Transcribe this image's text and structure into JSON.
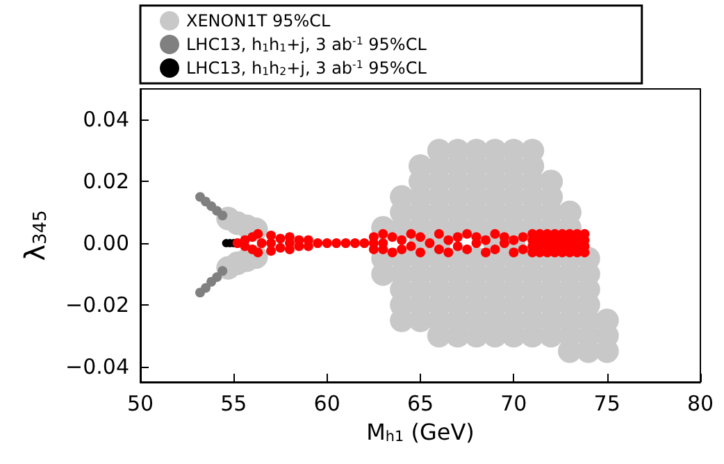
{
  "chart_data": {
    "type": "scatter",
    "xlabel": "M$_{h1}$ (GeV)",
    "ylabel": "λ$_{345}$",
    "xlim": [
      50,
      80
    ],
    "ylim": [
      -0.045,
      0.05
    ],
    "xticks": [
      50,
      55,
      60,
      65,
      70,
      75,
      80
    ],
    "yticks": [
      {
        "value": -0.04,
        "label": "−0.04"
      },
      {
        "value": -0.02,
        "label": "−0.02"
      },
      {
        "value": 0,
        "label": "0.00"
      },
      0.02,
      0.04
    ],
    "grid": false,
    "legend": "top",
    "marker": "circle",
    "series": [
      {
        "name": "XENON1T 95%CL",
        "color": "#c8c8c8",
        "x": [
          63,
          63,
          63,
          64,
          64,
          64,
          64,
          64,
          64,
          64,
          64,
          65,
          65,
          65,
          65,
          65,
          65,
          65,
          65,
          65,
          65,
          65,
          66,
          66,
          66,
          66,
          66,
          66,
          66,
          66,
          66,
          66,
          66,
          66,
          66,
          67,
          67,
          67,
          67,
          67,
          67,
          67,
          67,
          67,
          67,
          67,
          67,
          68,
          68,
          68,
          68,
          68,
          68,
          68,
          68,
          68,
          68,
          68,
          68,
          69,
          69,
          69,
          69,
          69,
          69,
          69,
          69,
          69,
          69,
          69,
          69,
          69,
          70,
          70,
          70,
          70,
          70,
          70,
          70,
          70,
          70,
          70,
          70,
          70,
          70,
          71,
          71,
          71,
          71,
          71,
          71,
          71,
          71,
          71,
          71,
          71,
          71,
          72,
          72,
          72,
          72,
          72,
          72,
          72,
          72,
          72,
          72,
          73,
          73,
          73,
          73,
          73,
          73,
          73,
          73,
          73,
          74,
          74,
          74,
          74,
          74,
          74,
          74,
          75,
          75,
          75,
          54.7,
          55.2,
          55.7,
          56.2,
          54.7,
          55.2,
          55.7,
          56.2
        ],
        "values": [
          -0.01,
          -0.005,
          0.005,
          -0.025,
          -0.02,
          -0.015,
          -0.01,
          -0.005,
          0.005,
          0.01,
          0.015,
          -0.025,
          -0.02,
          -0.015,
          -0.01,
          -0.005,
          0,
          0.005,
          0.01,
          0.015,
          0.02,
          0.025,
          -0.03,
          -0.025,
          -0.02,
          -0.015,
          -0.01,
          -0.005,
          0,
          0.005,
          0.01,
          0.015,
          0.02,
          0.025,
          0.03,
          -0.03,
          -0.025,
          -0.02,
          -0.015,
          -0.01,
          -0.005,
          0.005,
          0.01,
          0.015,
          0.02,
          0.025,
          0.03,
          -0.03,
          -0.025,
          -0.02,
          -0.015,
          -0.01,
          -0.005,
          0.005,
          0.01,
          0.015,
          0.02,
          0.025,
          0.03,
          -0.03,
          -0.025,
          -0.02,
          -0.015,
          -0.01,
          -0.005,
          0,
          0.005,
          0.01,
          0.015,
          0.02,
          0.025,
          0.03,
          -0.03,
          -0.025,
          -0.02,
          -0.015,
          -0.01,
          -0.005,
          0,
          0.005,
          0.01,
          0.015,
          0.02,
          0.025,
          0.03,
          -0.03,
          -0.025,
          -0.02,
          -0.015,
          -0.01,
          -0.005,
          0.005,
          0.01,
          0.015,
          0.02,
          0.025,
          0.03,
          -0.03,
          -0.025,
          -0.02,
          -0.015,
          -0.01,
          -0.005,
          0.005,
          0.01,
          0.015,
          0.02,
          -0.035,
          -0.03,
          -0.025,
          -0.02,
          -0.015,
          -0.01,
          -0.005,
          0.005,
          0.01,
          -0.035,
          -0.03,
          -0.025,
          -0.02,
          -0.015,
          -0.01,
          -0.005,
          -0.035,
          -0.03,
          -0.025,
          0.008,
          0.0065,
          0.0055,
          0.0045,
          -0.008,
          -0.0065,
          -0.0055,
          -0.0045
        ]
      },
      {
        "name": "LHC13, h$_{1}$h$_{1}$+j, 3 ab$^{-1}$ 95%CL",
        "color": "#808080",
        "x": [
          53.2,
          53.5,
          53.8,
          54.1,
          54.4,
          53.2,
          53.5,
          53.8,
          54.1,
          54.4
        ],
        "values": [
          0.015,
          0.0135,
          0.012,
          0.0105,
          0.009,
          -0.016,
          -0.0145,
          -0.0125,
          -0.011,
          -0.009
        ]
      },
      {
        "name": "LHC13, h$_{1}$h$_{2}$+j, 3 ab$^{-1}$ 95%CL",
        "color": "#000000",
        "x": [
          54.6,
          54.8,
          55.0
        ],
        "values": [
          0,
          0,
          0
        ]
      },
      {
        "color": "#ff0000",
        "x": [
          55.2,
          55.6,
          55.6,
          56,
          56,
          56.3,
          56.3,
          56.5,
          57,
          57,
          57,
          57.5,
          57.5,
          58,
          58,
          58,
          58.5,
          58.5,
          59,
          59,
          59.5,
          60,
          60.5,
          61,
          61.5,
          62,
          62.5,
          62.5,
          62.5,
          63,
          63,
          63,
          63.5,
          63.5,
          64,
          64,
          64.5,
          64.5,
          65,
          65,
          65.5,
          66,
          66,
          66.5,
          66.5,
          67,
          67,
          67.5,
          67.5,
          68,
          68,
          68.5,
          68.5,
          69,
          69,
          69.5,
          69.5,
          70,
          70,
          70.5,
          70.5,
          71,
          71,
          71,
          71,
          71.4,
          71.4,
          71.4,
          71.4,
          71.8,
          71.8,
          71.8,
          71.8,
          72.2,
          72.2,
          72.2,
          72.2,
          72.6,
          72.6,
          72.6,
          72.6,
          73,
          73,
          73,
          73,
          73.4,
          73.4,
          73.4,
          73.4,
          73.8,
          73.8,
          73.8,
          73.8
        ],
        "values": [
          0,
          0.001,
          -0.001,
          0.002,
          -0.002,
          0.003,
          -0.003,
          0,
          0.0025,
          -0.0025,
          0,
          0.0015,
          -0.0015,
          0.002,
          -0.002,
          0,
          0.001,
          -0.001,
          0.001,
          -0.001,
          0,
          0,
          0,
          0,
          0,
          0,
          0.002,
          -0.002,
          0,
          0.003,
          -0.002,
          0,
          0.002,
          -0.003,
          0.001,
          -0.002,
          0.003,
          -0.001,
          0.002,
          -0.003,
          0,
          0.003,
          -0.002,
          0.001,
          -0.003,
          0.002,
          -0.001,
          0.003,
          -0.002,
          0,
          0.002,
          -0.003,
          0.001,
          0.003,
          -0.002,
          0,
          0.002,
          -0.003,
          0.001,
          0.002,
          -0.002,
          0.003,
          0.001,
          -0.001,
          -0.003,
          0.003,
          0.001,
          -0.001,
          -0.003,
          0.003,
          0.001,
          -0.001,
          -0.003,
          0.003,
          0.001,
          -0.001,
          -0.003,
          0.003,
          0.001,
          -0.001,
          -0.003,
          0.003,
          0.001,
          -0.001,
          -0.003,
          0.003,
          0.001,
          -0.001,
          -0.003,
          0.003,
          0.001,
          -0.001,
          -0.003
        ]
      }
    ]
  }
}
